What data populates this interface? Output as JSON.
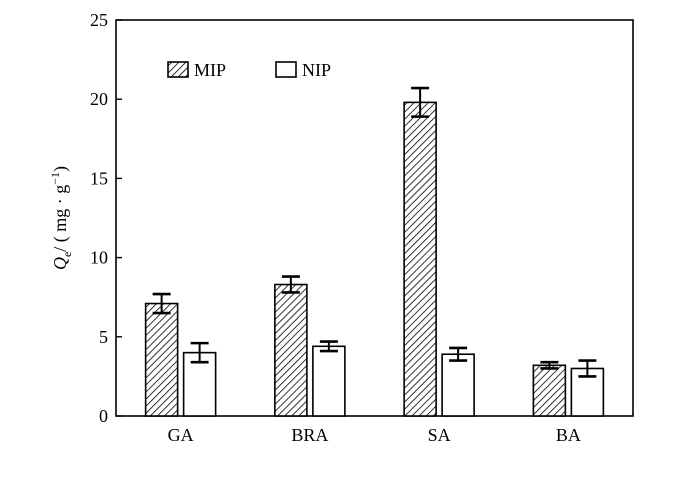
{
  "chart_data": {
    "type": "bar",
    "title": "",
    "xlabel": "",
    "ylabel": {
      "main": "Q",
      "subscript": "e",
      "unit": "/ ( mg · g",
      "superscript": "−1",
      "close": ")"
    },
    "ylim": [
      0,
      25
    ],
    "yticks": [
      0,
      5,
      10,
      15,
      20,
      25
    ],
    "categories": [
      "GA",
      "BRA",
      "SA",
      "BA"
    ],
    "series": [
      {
        "name": "MIP",
        "pattern": "hatched",
        "values": [
          7.1,
          8.3,
          19.8,
          3.2
        ],
        "errors": [
          0.6,
          0.5,
          0.9,
          0.2
        ]
      },
      {
        "name": "NIP",
        "pattern": "open",
        "values": [
          4.0,
          4.4,
          3.9,
          3.0
        ],
        "errors": [
          0.6,
          0.3,
          0.4,
          0.5
        ]
      }
    ],
    "legend": {
      "position": "top-left",
      "orientation": "horizontal"
    },
    "grid": false
  }
}
